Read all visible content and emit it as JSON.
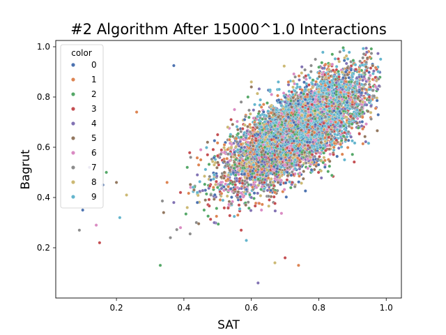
{
  "chart_data": {
    "type": "scatter",
    "title": "#2 Algorithm After 15000^1.0 Interactions",
    "xlabel": "SAT",
    "ylabel": "Bagrut",
    "xlim": [
      0.02,
      1.045
    ],
    "ylim": [
      0.0,
      1.025
    ],
    "xticks": [
      0.2,
      0.4,
      0.6,
      0.8,
      1.0
    ],
    "xtick_labels": [
      "0.2",
      "0.4",
      "0.6",
      "0.8",
      "1.0"
    ],
    "yticks": [
      0.2,
      0.4,
      0.6,
      0.8,
      1.0
    ],
    "ytick_labels": [
      "0.2",
      "0.4",
      "0.6",
      "0.8",
      "1.0"
    ],
    "grid": false,
    "legend": {
      "title": "color",
      "placement": "top-left",
      "entries": [
        {
          "label": "0",
          "color": "#4c72b0"
        },
        {
          "label": "1",
          "color": "#dd8452"
        },
        {
          "label": "2",
          "color": "#55a868"
        },
        {
          "label": "3",
          "color": "#c44e52"
        },
        {
          "label": "4",
          "color": "#8172b3"
        },
        {
          "label": "5",
          "color": "#937860"
        },
        {
          "label": "6",
          "color": "#da8bc3"
        },
        {
          "label": "7",
          "color": "#8c8c8c"
        },
        {
          "label": "8",
          "color": "#ccb974"
        },
        {
          "label": "9",
          "color": "#64b5cd"
        }
      ]
    },
    "series": [
      {
        "label": "0",
        "color": "#4c72b0",
        "points": [
          [
            0.37,
            0.925
          ],
          [
            0.1,
            0.35
          ],
          [
            0.16,
            0.45
          ],
          [
            0.71,
            0.72
          ],
          [
            0.55,
            0.58
          ],
          [
            0.83,
            0.84
          ],
          [
            0.62,
            0.65
          ],
          [
            0.88,
            0.9
          ],
          [
            0.48,
            0.47
          ],
          [
            0.76,
            0.79
          ],
          [
            0.66,
            0.55
          ],
          [
            0.79,
            0.69
          ],
          [
            0.58,
            0.71
          ],
          [
            0.92,
            0.82
          ],
          [
            0.44,
            0.38
          ]
        ]
      },
      {
        "label": "1",
        "color": "#dd8452",
        "points": [
          [
            0.26,
            0.74
          ],
          [
            0.74,
            0.13
          ],
          [
            0.67,
            0.42
          ],
          [
            0.82,
            0.93
          ],
          [
            0.52,
            0.61
          ],
          [
            0.71,
            0.86
          ],
          [
            0.6,
            0.52
          ],
          [
            0.9,
            0.78
          ],
          [
            0.45,
            0.55
          ],
          [
            0.77,
            0.66
          ],
          [
            0.63,
            0.76
          ],
          [
            0.35,
            0.46
          ],
          [
            0.85,
            0.7
          ],
          [
            0.56,
            0.33
          ],
          [
            0.96,
            0.87
          ]
        ]
      },
      {
        "label": "2",
        "color": "#55a868",
        "points": [
          [
            0.33,
            0.13
          ],
          [
            0.17,
            0.5
          ],
          [
            0.84,
            0.97
          ],
          [
            0.57,
            0.64
          ],
          [
            0.73,
            0.73
          ],
          [
            0.5,
            0.44
          ],
          [
            0.89,
            0.86
          ],
          [
            0.64,
            0.6
          ],
          [
            0.41,
            0.52
          ],
          [
            0.8,
            0.8
          ],
          [
            0.69,
            0.69
          ],
          [
            0.59,
            0.8
          ],
          [
            0.93,
            0.74
          ],
          [
            0.46,
            0.35
          ],
          [
            0.75,
            0.58
          ]
        ]
      },
      {
        "label": "3",
        "color": "#c44e52",
        "points": [
          [
            0.15,
            0.22
          ],
          [
            0.7,
            0.16
          ],
          [
            0.54,
            0.71
          ],
          [
            0.86,
            0.88
          ],
          [
            0.66,
            0.63
          ],
          [
            0.47,
            0.57
          ],
          [
            0.78,
            0.77
          ],
          [
            0.61,
            0.48
          ],
          [
            0.91,
            0.91
          ],
          [
            0.39,
            0.42
          ],
          [
            0.72,
            0.82
          ],
          [
            0.57,
            0.27
          ],
          [
            0.83,
            0.68
          ],
          [
            0.5,
            0.65
          ],
          [
            0.95,
            0.8
          ]
        ]
      },
      {
        "label": "4",
        "color": "#8172b3",
        "points": [
          [
            0.12,
            0.52
          ],
          [
            0.62,
            0.06
          ],
          [
            0.75,
            0.92
          ],
          [
            0.53,
            0.54
          ],
          [
            0.87,
            0.83
          ],
          [
            0.65,
            0.7
          ],
          [
            0.44,
            0.49
          ],
          [
            0.81,
            0.74
          ],
          [
            0.58,
            0.6
          ],
          [
            0.7,
            0.78
          ],
          [
            0.92,
            0.88
          ],
          [
            0.37,
            0.38
          ],
          [
            0.6,
            0.4
          ],
          [
            0.79,
            0.85
          ],
          [
            0.49,
            0.3
          ]
        ]
      },
      {
        "label": "5",
        "color": "#937860",
        "points": [
          [
            0.2,
            0.46
          ],
          [
            0.88,
            0.63
          ],
          [
            0.56,
            0.67
          ],
          [
            0.72,
            0.76
          ],
          [
            0.43,
            0.43
          ],
          [
            0.85,
            0.87
          ],
          [
            0.63,
            0.58
          ],
          [
            0.52,
            0.5
          ],
          [
            0.9,
            0.82
          ],
          [
            0.68,
            0.72
          ],
          [
            0.78,
            0.65
          ],
          [
            0.47,
            0.62
          ],
          [
            0.34,
            0.34
          ],
          [
            0.94,
            0.92
          ],
          [
            0.6,
            0.84
          ]
        ]
      },
      {
        "label": "6",
        "color": "#da8bc3",
        "points": [
          [
            0.14,
            0.29
          ],
          [
            0.81,
            0.89
          ],
          [
            0.59,
            0.62
          ],
          [
            0.74,
            0.7
          ],
          [
            0.45,
            0.59
          ],
          [
            0.87,
            0.79
          ],
          [
            0.66,
            0.81
          ],
          [
            0.51,
            0.46
          ],
          [
            0.7,
            0.53
          ],
          [
            0.92,
            0.84
          ],
          [
            0.39,
            0.28
          ],
          [
            0.63,
            0.35
          ],
          [
            0.77,
            0.74
          ],
          [
            0.55,
            0.75
          ],
          [
            0.84,
            0.93
          ]
        ]
      },
      {
        "label": "7",
        "color": "#8c8c8c",
        "points": [
          [
            0.09,
            0.27
          ],
          [
            0.79,
            0.95
          ],
          [
            0.54,
            0.52
          ],
          [
            0.68,
            0.66
          ],
          [
            0.86,
            0.8
          ],
          [
            0.48,
            0.41
          ],
          [
            0.73,
            0.88
          ],
          [
            0.61,
            0.69
          ],
          [
            0.9,
            0.76
          ],
          [
            0.42,
            0.56
          ],
          [
            0.65,
            0.45
          ],
          [
            0.82,
            0.72
          ],
          [
            0.57,
            0.78
          ],
          [
            0.36,
            0.24
          ],
          [
            0.95,
            0.85
          ]
        ]
      },
      {
        "label": "8",
        "color": "#ccb974",
        "points": [
          [
            0.23,
            0.41
          ],
          [
            0.67,
            0.14
          ],
          [
            0.83,
            0.91
          ],
          [
            0.58,
            0.57
          ],
          [
            0.71,
            0.79
          ],
          [
            0.49,
            0.53
          ],
          [
            0.88,
            0.84
          ],
          [
            0.64,
            0.63
          ],
          [
            0.76,
            0.71
          ],
          [
            0.53,
            0.68
          ],
          [
            0.93,
            0.78
          ],
          [
            0.41,
            0.36
          ],
          [
            0.69,
            0.5
          ],
          [
            0.8,
            0.82
          ],
          [
            0.6,
            0.86
          ]
        ]
      },
      {
        "label": "9",
        "color": "#64b5cd",
        "points": [
          [
            0.21,
            0.32
          ],
          [
            0.71,
            0.75
          ],
          [
            0.8,
            0.8
          ],
          [
            0.63,
            0.68
          ],
          [
            0.86,
            0.85
          ],
          [
            0.56,
            0.59
          ],
          [
            0.75,
            0.64
          ],
          [
            0.68,
            0.86
          ],
          [
            0.9,
            0.88
          ],
          [
            0.49,
            0.49
          ],
          [
            0.61,
            0.77
          ],
          [
            0.83,
            0.72
          ],
          [
            0.44,
            0.42
          ],
          [
            0.73,
            0.55
          ],
          [
            0.95,
            0.83
          ]
        ]
      }
    ]
  }
}
